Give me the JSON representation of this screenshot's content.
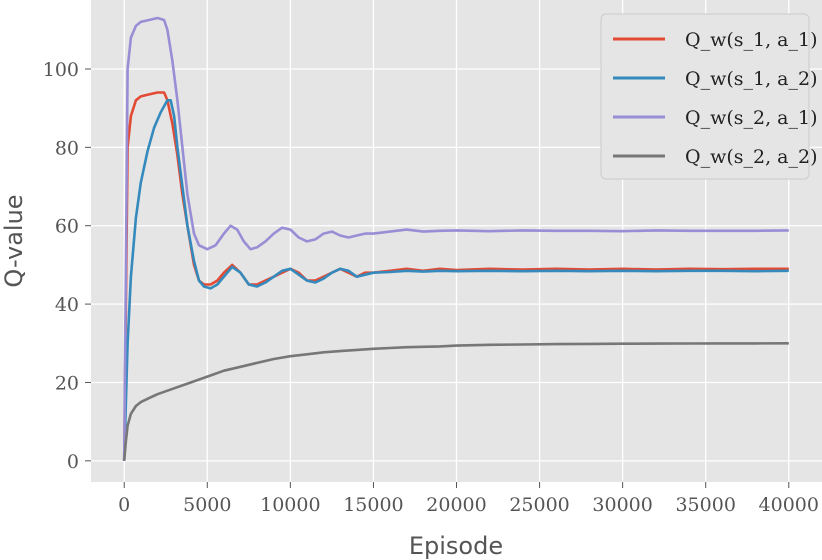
{
  "chart_data": {
    "type": "line",
    "xlabel": "Episode",
    "ylabel": "Q-value",
    "xlim": [
      -2000,
      42000
    ],
    "ylim": [
      -5.4,
      117.6
    ],
    "xticks": [
      0,
      5000,
      10000,
      15000,
      20000,
      25000,
      30000,
      35000,
      40000
    ],
    "xtick_labels": [
      "0",
      "5000",
      "10000",
      "15000",
      "20000",
      "25000",
      "30000",
      "35000",
      "40000"
    ],
    "yticks": [
      0,
      20,
      40,
      60,
      80,
      100
    ],
    "ytick_labels": [
      "0",
      "20",
      "40",
      "60",
      "80",
      "100"
    ],
    "grid": true,
    "legend_position": "top-right",
    "series": [
      {
        "name": "Q_w(s_1, a_1)",
        "color": "#e24a33",
        "x": [
          0,
          200,
          400,
          700,
          1000,
          1500,
          2000,
          2400,
          2600,
          2900,
          3200,
          3500,
          3800,
          4200,
          4500,
          4800,
          5200,
          5600,
          6000,
          6500,
          7000,
          7500,
          8000,
          8500,
          9000,
          9500,
          10000,
          10500,
          11000,
          11500,
          12000,
          12500,
          13000,
          13500,
          14000,
          14500,
          15000,
          16000,
          17000,
          18000,
          19000,
          20000,
          22000,
          24000,
          26000,
          28000,
          30000,
          32000,
          34000,
          36000,
          38000,
          40000
        ],
        "y": [
          0,
          80,
          88,
          92,
          93,
          93.5,
          94,
          94,
          92,
          86,
          78,
          68,
          60,
          50,
          46,
          45,
          45,
          46,
          48,
          50,
          48,
          45,
          45,
          46,
          47,
          48,
          49,
          48,
          46,
          46,
          47,
          48,
          49,
          48,
          47,
          48,
          48,
          48.5,
          49,
          48.5,
          49,
          48.7,
          49,
          48.8,
          49,
          48.8,
          49,
          48.8,
          49,
          48.9,
          49,
          49
        ]
      },
      {
        "name": "Q_w(s_1, a_2)",
        "color": "#348abd",
        "x": [
          0,
          200,
          400,
          700,
          1000,
          1400,
          1800,
          2200,
          2600,
          2800,
          3000,
          3200,
          3500,
          3800,
          4200,
          4500,
          4800,
          5200,
          5600,
          6000,
          6500,
          7000,
          7500,
          8000,
          8500,
          9000,
          9500,
          10000,
          10500,
          11000,
          11500,
          12000,
          12500,
          13000,
          13500,
          14000,
          14500,
          15000,
          16000,
          17000,
          18000,
          19000,
          20000,
          22000,
          24000,
          26000,
          28000,
          30000,
          32000,
          34000,
          36000,
          38000,
          40000
        ],
        "y": [
          0,
          30,
          47,
          62,
          71,
          79,
          85,
          89,
          92,
          92,
          88,
          80,
          70,
          60,
          51,
          46,
          44.5,
          44,
          45,
          47,
          49.5,
          48,
          45,
          44.5,
          45.5,
          47,
          48.5,
          49,
          47.5,
          46,
          45.5,
          46.5,
          48,
          49,
          48.5,
          47,
          47.5,
          48,
          48.2,
          48.5,
          48.3,
          48.5,
          48.4,
          48.5,
          48.4,
          48.5,
          48.4,
          48.5,
          48.4,
          48.5,
          48.5,
          48.4,
          48.5
        ]
      },
      {
        "name": "Q_w(s_2, a_1)",
        "color": "#988ed5",
        "x": [
          0,
          200,
          400,
          700,
          1000,
          1500,
          2000,
          2400,
          2600,
          2900,
          3200,
          3500,
          3800,
          4200,
          4500,
          5000,
          5500,
          6000,
          6400,
          6800,
          7200,
          7600,
          8000,
          8500,
          9000,
          9500,
          10000,
          10500,
          11000,
          11500,
          12000,
          12500,
          13000,
          13500,
          14000,
          14500,
          15000,
          16000,
          17000,
          18000,
          19000,
          20000,
          22000,
          24000,
          26000,
          28000,
          30000,
          32000,
          34000,
          36000,
          38000,
          40000
        ],
        "y": [
          0,
          100,
          108,
          111,
          112,
          112.5,
          113,
          112.5,
          110,
          102,
          92,
          80,
          68,
          58,
          55,
          54,
          55,
          58,
          60,
          59,
          56,
          54,
          54.5,
          56,
          58,
          59.5,
          59,
          57,
          56,
          56.5,
          58,
          58.5,
          57.5,
          57,
          57.5,
          58,
          58,
          58.5,
          59,
          58.5,
          58.7,
          58.8,
          58.6,
          58.8,
          58.7,
          58.7,
          58.6,
          58.8,
          58.7,
          58.7,
          58.7,
          58.8
        ]
      },
      {
        "name": "Q_w(s_2, a_2)",
        "color": "#777777",
        "x": [
          0,
          100,
          200,
          400,
          700,
          1000,
          1500,
          2000,
          3000,
          4000,
          5000,
          6000,
          7000,
          8000,
          9000,
          10000,
          11000,
          12000,
          13000,
          14000,
          15000,
          16000,
          17000,
          18000,
          19000,
          20000,
          22000,
          24000,
          26000,
          28000,
          30000,
          32000,
          34000,
          36000,
          38000,
          40000
        ],
        "y": [
          0,
          5,
          9,
          12,
          14,
          15,
          16,
          17,
          18.5,
          20,
          21.5,
          23,
          24,
          25,
          26,
          26.7,
          27.2,
          27.7,
          28,
          28.3,
          28.6,
          28.8,
          29,
          29.1,
          29.2,
          29.4,
          29.6,
          29.7,
          29.8,
          29.85,
          29.9,
          29.92,
          29.95,
          29.97,
          29.98,
          30
        ]
      }
    ]
  }
}
